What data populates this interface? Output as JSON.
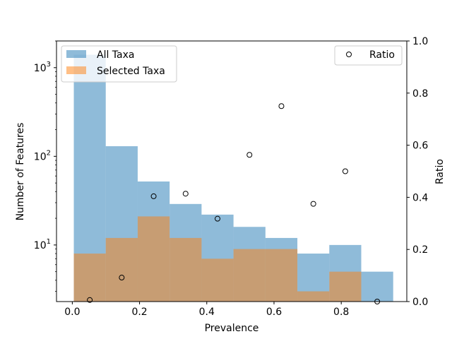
{
  "chart_data": {
    "type": "bar",
    "xlabel": "Prevalence",
    "ylabel_left": "Number of Features",
    "ylabel_right": "Ratio",
    "xlim": [
      -0.047,
      0.995
    ],
    "x_ticks": [
      {
        "value": 0.0,
        "label": "0.0"
      },
      {
        "value": 0.2,
        "label": "0.2"
      },
      {
        "value": 0.4,
        "label": "0.4"
      },
      {
        "value": 0.6,
        "label": "0.6"
      },
      {
        "value": 0.8,
        "label": "0.8"
      }
    ],
    "y_left_scale": "log",
    "y_left_lim": [
      2.3,
      2000
    ],
    "y_left_ticks": [
      {
        "value": 10,
        "base": "10",
        "exp": "1"
      },
      {
        "value": 100,
        "base": "10",
        "exp": "2"
      },
      {
        "value": 1000,
        "base": "10",
        "exp": "3"
      }
    ],
    "y_right_lim": [
      0.0,
      1.0
    ],
    "y_right_ticks": [
      "0.0",
      "0.2",
      "0.4",
      "0.6",
      "0.8",
      "1.0"
    ],
    "bin_edges": [
      0.0045,
      0.0995,
      0.1945,
      0.2895,
      0.3845,
      0.4795,
      0.5745,
      0.6695,
      0.7645,
      0.8595,
      0.9545
    ],
    "series": [
      {
        "name": "All Taxa",
        "kind": "hist",
        "color": "#1f77b4",
        "values": [
          1400,
          130,
          52,
          29,
          22,
          16,
          12,
          8,
          10,
          5
        ]
      },
      {
        "name": "Selected Taxa",
        "kind": "hist",
        "color": "#ff7f0e",
        "values": [
          8,
          12,
          21,
          12,
          7,
          9,
          9,
          3,
          5,
          0
        ]
      },
      {
        "name": "Ratio",
        "kind": "scatter",
        "axis": "right",
        "x": [
          0.052,
          0.147,
          0.242,
          0.337,
          0.432,
          0.527,
          0.622,
          0.717,
          0.812,
          0.907
        ],
        "y": [
          0.006,
          0.092,
          0.404,
          0.414,
          0.318,
          0.563,
          0.75,
          0.375,
          0.5,
          0.0
        ]
      }
    ],
    "legend_left_placement": "upper-left",
    "legend_right_placement": "upper-right",
    "grid": false
  }
}
